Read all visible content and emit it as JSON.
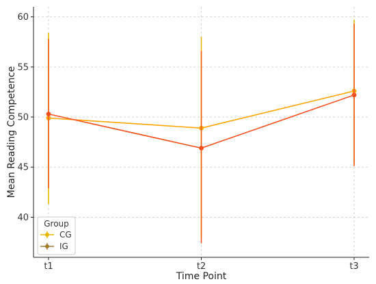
{
  "chart_data": {
    "type": "line",
    "xlabel": "Time Point",
    "ylabel": "Mean Reading Competence",
    "categories": [
      "t1",
      "t2",
      "t3"
    ],
    "ylim": [
      36,
      61
    ],
    "yticks": [
      40,
      45,
      50,
      55,
      60
    ],
    "grid": true,
    "legend": {
      "title": "Group",
      "position": "bottom-left"
    },
    "series": [
      {
        "name": "CG",
        "values": [
          49.9,
          48.9,
          52.6
        ],
        "error_low": [
          41.3,
          38.0,
          45.4
        ],
        "error_high": [
          58.4,
          58.0,
          59.7
        ],
        "line_color": "#FFA500",
        "error_color": "#E6B800",
        "marker_color": "#E6B800"
      },
      {
        "name": "IG",
        "values": [
          50.3,
          46.9,
          52.2
        ],
        "error_low": [
          42.9,
          37.4,
          45.1
        ],
        "error_high": [
          57.8,
          56.6,
          59.3
        ],
        "line_color": "#F4511E",
        "error_color": "#F05A1A",
        "marker_color": "#A0782C"
      }
    ]
  }
}
